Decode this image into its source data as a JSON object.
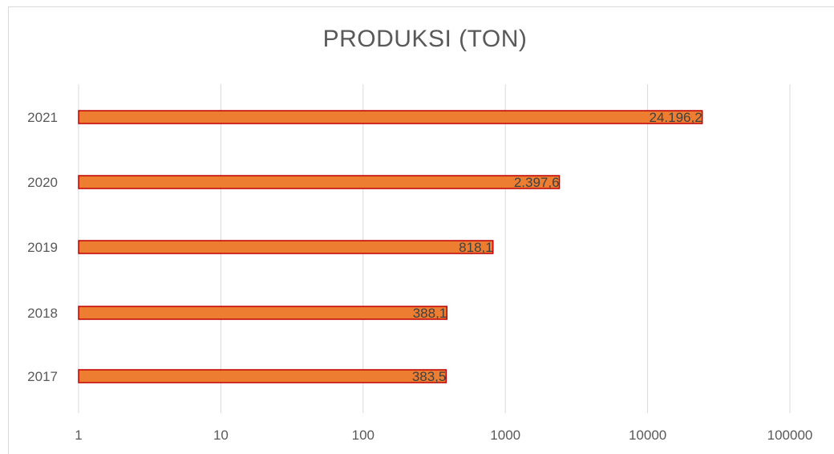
{
  "chart_data": {
    "type": "bar",
    "orientation": "horizontal",
    "title": "PRODUKSI (TON)",
    "categories": [
      "2021",
      "2020",
      "2019",
      "2018",
      "2017"
    ],
    "values": [
      24196.2,
      2397.6,
      818.1,
      388.1,
      383.5
    ],
    "data_labels": [
      "24.196,2",
      "2.397,6",
      "818,1",
      "388,1",
      "383,5"
    ],
    "x_scale": "log",
    "xlim": [
      1,
      100000
    ],
    "x_ticks": [
      "1",
      "10",
      "100",
      "1000",
      "10000",
      "100000"
    ],
    "grid": true,
    "bar_color": "#ed7d31",
    "bar_edge_color": "#c00000"
  }
}
